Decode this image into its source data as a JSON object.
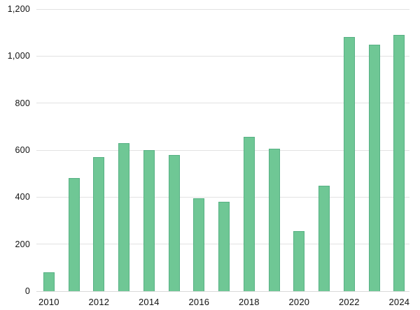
{
  "chart_data": {
    "type": "bar",
    "title": "",
    "xlabel": "",
    "ylabel": "",
    "categories": [
      "2010",
      "2011",
      "2012",
      "2013",
      "2014",
      "2015",
      "2016",
      "2017",
      "2018",
      "2019",
      "2020",
      "2021",
      "2022",
      "2023",
      "2024"
    ],
    "values": [
      80,
      480,
      570,
      630,
      600,
      580,
      395,
      380,
      655,
      605,
      255,
      450,
      1080,
      1050,
      1090
    ],
    "ylim": [
      0,
      1200
    ],
    "yticks": [
      0,
      200,
      400,
      600,
      800,
      1000,
      1200
    ],
    "ytick_labels": [
      "0",
      "200",
      "400",
      "600",
      "800",
      "1,000",
      "1,200"
    ],
    "xtick_indices": [
      0,
      2,
      4,
      6,
      8,
      10,
      12,
      14
    ],
    "xtick_labels": [
      "2010",
      "2012",
      "2014",
      "2016",
      "2018",
      "2020",
      "2022",
      "2024"
    ],
    "grid": true,
    "legend": false,
    "colors": {
      "bar_fill": "#6fc795",
      "bar_border": "#57b184",
      "gridline": "#e2e2e2",
      "baseline": "#d9d9d9",
      "label": "#111111",
      "background": "#ffffff"
    }
  }
}
